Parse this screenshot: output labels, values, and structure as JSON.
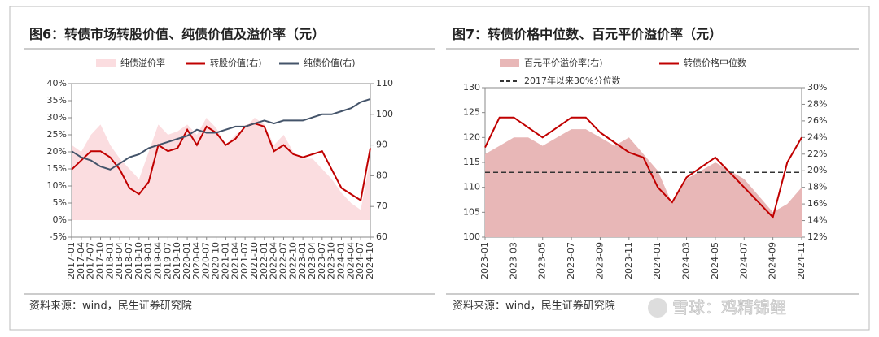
{
  "chart_data": [
    {
      "type": "line",
      "title": "图6：转债市场转股价值、纯债价值及溢价率（元）",
      "source": "资料来源：wind，民生证券研究院",
      "categories": [
        "2017-01",
        "2017-04",
        "2017-07",
        "2017-10",
        "2018-01",
        "2018-04",
        "2018-07",
        "2018-10",
        "2019-01",
        "2019-04",
        "2019-07",
        "2019-10",
        "2020-01",
        "2020-04",
        "2020-07",
        "2020-10",
        "2021-01",
        "2021-04",
        "2021-07",
        "2021-10",
        "2022-01",
        "2022-04",
        "2022-07",
        "2022-10",
        "2023-01",
        "2023-04",
        "2023-07",
        "2023-10",
        "2024-01",
        "2024-04",
        "2024-07",
        "2024-10"
      ],
      "series": [
        {
          "name": "纯债溢价率",
          "type": "area",
          "color": "#fbdde0",
          "values": [
            22,
            20,
            25,
            28,
            22,
            18,
            15,
            12,
            20,
            28,
            25,
            26,
            28,
            25,
            30,
            27,
            22,
            25,
            27,
            30,
            28,
            22,
            25,
            20,
            18,
            18,
            15,
            12,
            8,
            5,
            3,
            18
          ]
        },
        {
          "name": "转股价值(右)",
          "type": "line",
          "axis": "y2",
          "color": "#c00000",
          "values": [
            82,
            85,
            88,
            88,
            86,
            82,
            76,
            74,
            78,
            90,
            88,
            89,
            95,
            90,
            96,
            94,
            90,
            92,
            96,
            97,
            96,
            88,
            90,
            87,
            86,
            87,
            88,
            82,
            76,
            74,
            72,
            89
          ]
        },
        {
          "name": "纯债价值(右)",
          "type": "line",
          "axis": "y2",
          "color": "#44546a",
          "values": [
            88,
            86,
            85,
            83,
            82,
            84,
            86,
            87,
            89,
            90,
            91,
            92,
            93,
            95,
            94,
            94,
            95,
            96,
            96,
            97,
            98,
            97,
            98,
            98,
            98,
            99,
            100,
            100,
            101,
            102,
            104,
            105
          ]
        }
      ],
      "ylim": [
        -5,
        40
      ],
      "yticks": [
        {
          "value": -5,
          "label": "-5%"
        },
        {
          "value": 0,
          "label": "0%"
        },
        {
          "value": 5,
          "label": "5%"
        },
        {
          "value": 10,
          "label": "10%"
        },
        {
          "value": 15,
          "label": "15%"
        },
        {
          "value": 20,
          "label": "20%"
        },
        {
          "value": 25,
          "label": "25%"
        },
        {
          "value": 30,
          "label": "30%"
        },
        {
          "value": 35,
          "label": "35%"
        },
        {
          "value": 40,
          "label": "40%"
        }
      ],
      "y2lim": [
        60,
        110
      ],
      "y2ticks": [
        60,
        70,
        80,
        90,
        100,
        110
      ]
    },
    {
      "type": "line",
      "title": "图7：转债价格中位数、百元平价溢价率（元）",
      "source": "资料来源：wind，民生证券研究院",
      "categories": [
        "2023-01",
        null,
        "2023-03",
        null,
        "2023-05",
        null,
        "2023-07",
        null,
        "2023-09",
        null,
        "2023-11",
        null,
        "2024-01",
        null,
        "2024-03",
        null,
        "2024-05",
        null,
        "2024-07",
        null,
        "2024-09",
        null,
        "2024-11"
      ],
      "series": [
        {
          "name": "百元平价溢价率(右)",
          "type": "area",
          "axis": "y2",
          "color": "#e8b7b7",
          "values": [
            22,
            23,
            24,
            24,
            23,
            24,
            25,
            25,
            24,
            23,
            24,
            22,
            20,
            16,
            19,
            20,
            21,
            20,
            19,
            17,
            15,
            16,
            18
          ]
        },
        {
          "name": "转债价格中位数",
          "type": "line",
          "color": "#c00000",
          "values": [
            118,
            124,
            124,
            122,
            120,
            122,
            124,
            124,
            121,
            119,
            117,
            116,
            110,
            107,
            112,
            114,
            116,
            113,
            110,
            107,
            104,
            115,
            120
          ]
        }
      ],
      "reference_line": {
        "name": "2017年以来30%分位数",
        "value": 19.8,
        "axis": "y2",
        "color": "#333333"
      },
      "ylim": [
        100,
        130
      ],
      "yticks": [
        100,
        105,
        110,
        115,
        120,
        125,
        130
      ],
      "y2lim": [
        12,
        30
      ],
      "y2ticks": [
        {
          "value": 12,
          "label": "12%"
        },
        {
          "value": 14,
          "label": "14%"
        },
        {
          "value": 16,
          "label": "16%"
        },
        {
          "value": 18,
          "label": "18%"
        },
        {
          "value": 20,
          "label": "20%"
        },
        {
          "value": 22,
          "label": "22%"
        },
        {
          "value": 24,
          "label": "24%"
        },
        {
          "value": 26,
          "label": "26%"
        },
        {
          "value": 28,
          "label": "28%"
        },
        {
          "value": 30,
          "label": "30%"
        }
      ]
    }
  ],
  "watermark": "雪球：鸡精锦鲤"
}
